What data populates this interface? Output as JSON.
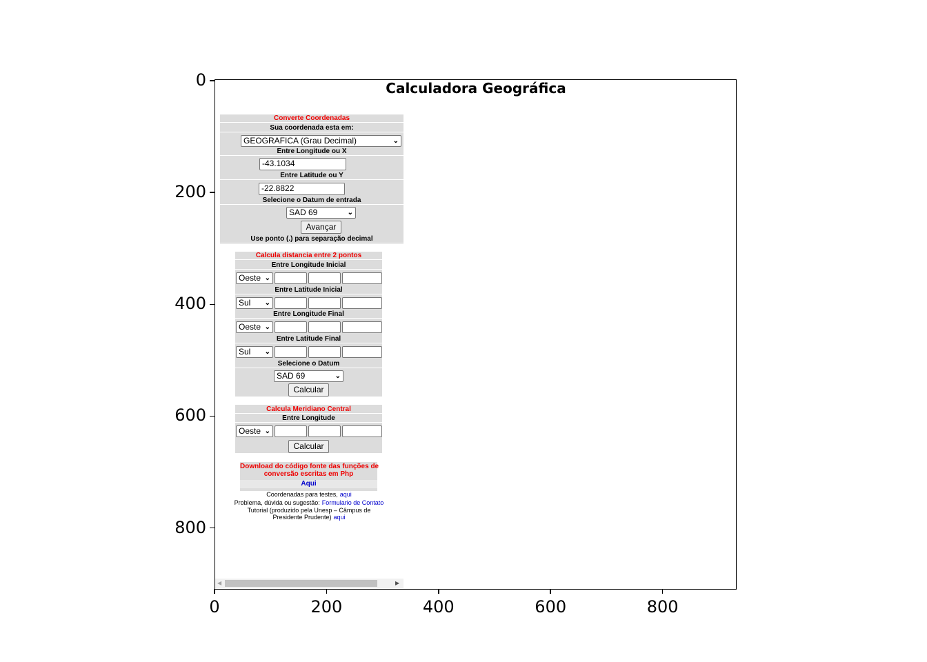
{
  "title": "Calculadora Geográfica",
  "axes": {
    "xlim": [
      0,
      931
    ],
    "ylim": [
      909,
      -2.5
    ],
    "xticks": [
      0,
      200,
      400,
      600,
      800
    ],
    "yticks": [
      0,
      200,
      400,
      600,
      800
    ]
  },
  "converter": {
    "heading": "Converte Coordenadas",
    "system_label": "Sua coordenada esta em:",
    "system": "GEOGRAFICA (Grau Decimal)",
    "longitude_label": "Entre Longitude ou X",
    "longitude": "-43.1034",
    "latitude_label": "Entre Latitude ou Y",
    "latitude": "-22.8822",
    "datum_label": "Selecione o Datum de entrada",
    "datum": "SAD 69",
    "button": "Avançar",
    "note": "Use ponto (.) para separação decimal"
  },
  "distance": {
    "heading": "Calcula distancia entre 2 pontos",
    "rows": [
      {
        "label": "Entre Longitude Inicial",
        "hemisphere": "Oeste"
      },
      {
        "label": "Entre Latitude Inicial",
        "hemisphere": "Sul"
      },
      {
        "label": "Entre Longitude Final",
        "hemisphere": "Oeste"
      },
      {
        "label": "Entre Latitude Final",
        "hemisphere": "Sul"
      }
    ],
    "datum_label": "Selecione o Datum",
    "datum": "SAD 69",
    "button": "Calcular"
  },
  "meridian": {
    "heading": "Calcula Meridiano Central",
    "label": "Entre Longitude",
    "hemisphere": "Oeste",
    "button": "Calcular"
  },
  "download": {
    "heading": [
      "Download do código fonte das funções de",
      "conversão escritas em Php"
    ],
    "link": "Aqui"
  },
  "footer": [
    {
      "text": "Coordenadas para testes,",
      "link": "aqui"
    },
    {
      "text": "Problema, dúvida ou sugestão:",
      "link": "Formulario de Contato"
    },
    {
      "text": "Tutorial (produzido pela Unesp – Câmpus de"
    },
    {
      "text": "Presidente Prudente)",
      "link": "aqui"
    }
  ]
}
